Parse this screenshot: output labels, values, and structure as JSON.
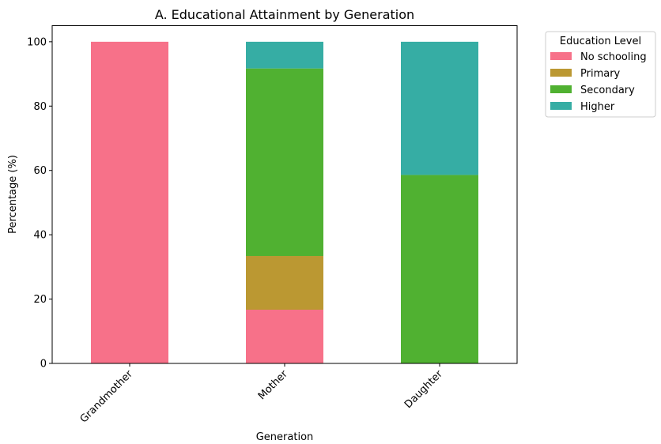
{
  "chart_data": {
    "type": "bar",
    "stacked": true,
    "title": "A. Educational Attainment by Generation",
    "xlabel": "Generation",
    "ylabel": "Percentage (%)",
    "categories": [
      "Grandmother",
      "Mother",
      "Daughter"
    ],
    "ylim": [
      0,
      105
    ],
    "yticks": [
      0,
      20,
      40,
      60,
      80,
      100
    ],
    "grid": false,
    "legend": {
      "title": "Education Level",
      "placement": "outside-top-right"
    },
    "series": [
      {
        "name": "No schooling",
        "color": "#f77189",
        "values": [
          100,
          16.7,
          0
        ]
      },
      {
        "name": "Primary",
        "color": "#bb9832",
        "values": [
          0,
          16.7,
          0
        ]
      },
      {
        "name": "Secondary",
        "color": "#50b131",
        "values": [
          0,
          58.3,
          58.6
        ]
      },
      {
        "name": "Higher",
        "color": "#36ada4",
        "values": [
          0,
          8.3,
          41.4
        ]
      }
    ]
  }
}
